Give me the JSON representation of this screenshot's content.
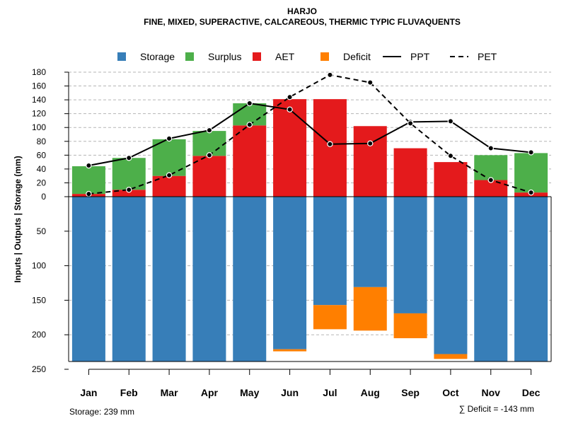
{
  "chart_data": {
    "type": "bar",
    "title": "HARJO",
    "subtitle": "FINE, MIXED, SUPERACTIVE, CALCAREOUS, THERMIC TYPIC FLUVAQUENTS",
    "ylabel": "Inputs | Outputs | Storage    (mm)",
    "categories": [
      "Jan",
      "Feb",
      "Mar",
      "Apr",
      "May",
      "Jun",
      "Jul",
      "Aug",
      "Sep",
      "Oct",
      "Nov",
      "Dec"
    ],
    "upper_ticks": [
      "0",
      "20",
      "40",
      "60",
      "80",
      "100",
      "120",
      "140",
      "160",
      "180"
    ],
    "lower_ticks": [
      "50",
      "100",
      "150",
      "200",
      "250"
    ],
    "upper_ylim": [
      0,
      180
    ],
    "lower_ylim": [
      0,
      250
    ],
    "colors": {
      "Storage": "#377eb8",
      "Surplus": "#4daf4a",
      "AET": "#e41a1c",
      "Deficit": "#ff7f00"
    },
    "legend": [
      "Storage",
      "Surplus",
      "AET",
      "Deficit",
      "PPT",
      "PET"
    ],
    "series": {
      "AET": [
        4,
        10,
        30,
        59,
        103,
        141,
        141,
        102,
        70,
        50,
        24,
        6
      ],
      "Surplus": [
        40,
        46,
        53,
        36,
        32,
        0,
        0,
        0,
        0,
        0,
        36,
        57
      ],
      "PPT": [
        45,
        56,
        84,
        96,
        135,
        126,
        76,
        77,
        108,
        109,
        70,
        64
      ],
      "PET": [
        4,
        10,
        31,
        60,
        104,
        144,
        176,
        165,
        106,
        59,
        24,
        6
      ],
      "Storage": [
        239,
        239,
        239,
        239,
        239,
        221,
        157,
        131,
        169,
        228,
        239,
        239
      ],
      "Deficit": [
        0,
        0,
        0,
        0,
        0,
        3,
        35,
        63,
        36,
        7,
        0,
        0
      ]
    },
    "storage_note": "Storage: 239 mm",
    "deficit_note": "∑ Deficit = -143 mm"
  }
}
